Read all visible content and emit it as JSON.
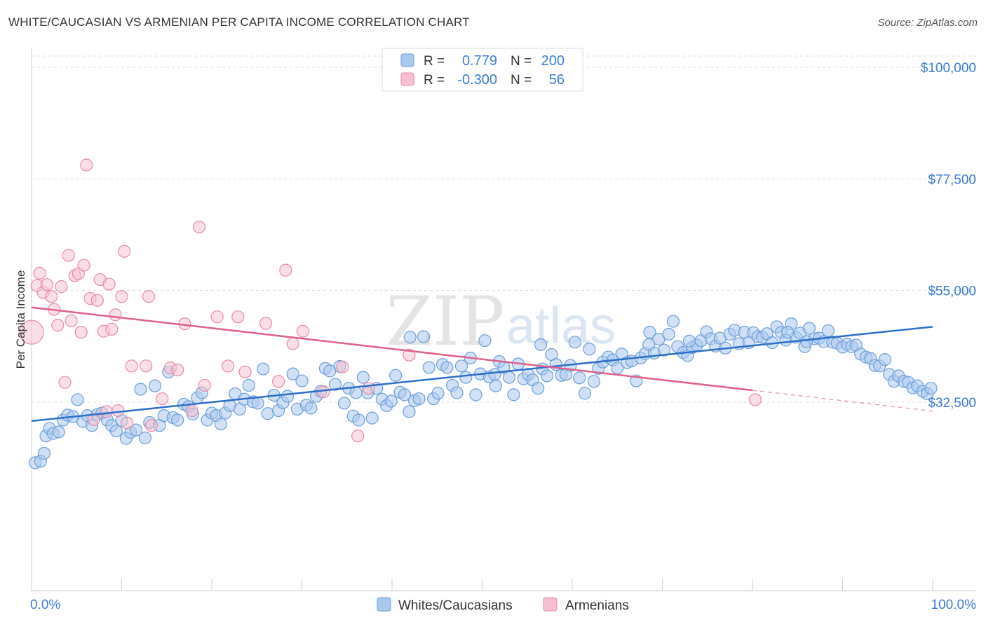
{
  "header": {
    "title": "WHITE/CAUCASIAN VS ARMENIAN PER CAPITA INCOME CORRELATION CHART",
    "source": "Source: ZipAtlas.com"
  },
  "watermark": {
    "zip": "ZIP",
    "atlas": "atlas"
  },
  "chart_data": {
    "type": "scatter",
    "title": "WHITE/CAUCASIAN VS ARMENIAN PER CAPITA INCOME CORRELATION CHART",
    "ylabel": "Per Capita Income",
    "xlabel": "",
    "xlim": [
      0,
      100
    ],
    "ylim": [
      14000,
      102000
    ],
    "x_tick_labels": [
      "0.0%",
      "100.0%"
    ],
    "y_ticks": [
      {
        "value": 100000,
        "label": "$100,000"
      },
      {
        "value": 77500,
        "label": "$77,500"
      },
      {
        "value": 55000,
        "label": "$55,000"
      },
      {
        "value": 32500,
        "label": "$32,500"
      }
    ],
    "grid": "horizontal dashed",
    "legend_top": [
      {
        "r_label": "R = ",
        "r_value": "0.779",
        "n_label": "N = ",
        "n_value": "200"
      },
      {
        "r_label": "R = ",
        "r_value": "-0.300",
        "n_label": "N = ",
        "n_value": "56"
      }
    ],
    "legend_bottom": [
      "Whites/Caucasians",
      "Armenians"
    ],
    "colors": {
      "blue_fill": "#a9c8f0",
      "blue_stroke": "#6a9fd8",
      "blue_line": "#2a6fc9",
      "pink_fill": "#f7bfd0",
      "pink_stroke": "#e88aa8",
      "pink_line": "#e0608a",
      "tick_label": "#3b7dd8",
      "grid": "#dddddd"
    },
    "series": [
      {
        "name": "Whites/Caucasians",
        "trend": {
          "x0": 0,
          "y0": 28700,
          "x1": 100,
          "y1": 47700
        },
        "points": [
          [
            0.4,
            20300
          ],
          [
            1.0,
            20600
          ],
          [
            1.4,
            22200
          ],
          [
            1.6,
            25700
          ],
          [
            2.0,
            27200
          ],
          [
            2.4,
            26200
          ],
          [
            3.0,
            26500
          ],
          [
            3.5,
            28900
          ],
          [
            4.0,
            29900
          ],
          [
            4.6,
            29600
          ],
          [
            5.1,
            33000
          ],
          [
            5.7,
            28600
          ],
          [
            6.2,
            29800
          ],
          [
            6.7,
            27800
          ],
          [
            7.3,
            30000
          ],
          [
            7.8,
            30300
          ],
          [
            8.4,
            28900
          ],
          [
            8.9,
            27800
          ],
          [
            9.4,
            26700
          ],
          [
            10.0,
            28800
          ],
          [
            10.5,
            25200
          ],
          [
            11.0,
            26400
          ],
          [
            11.6,
            26900
          ],
          [
            12.1,
            35100
          ],
          [
            12.6,
            25300
          ],
          [
            13.1,
            28400
          ],
          [
            13.7,
            35800
          ],
          [
            14.2,
            27800
          ],
          [
            14.7,
            29800
          ],
          [
            15.2,
            38600
          ],
          [
            15.7,
            29400
          ],
          [
            16.2,
            28900
          ],
          [
            16.9,
            32100
          ],
          [
            17.4,
            31600
          ],
          [
            17.9,
            30100
          ],
          [
            18.4,
            33400
          ],
          [
            18.9,
            34400
          ],
          [
            19.5,
            28900
          ],
          [
            20.0,
            30300
          ],
          [
            20.5,
            29800
          ],
          [
            21.0,
            28100
          ],
          [
            21.5,
            30300
          ],
          [
            22.0,
            31800
          ],
          [
            22.6,
            34200
          ],
          [
            23.1,
            31100
          ],
          [
            23.6,
            33100
          ],
          [
            24.1,
            35900
          ],
          [
            24.6,
            32600
          ],
          [
            25.1,
            32300
          ],
          [
            25.7,
            39200
          ],
          [
            26.2,
            30200
          ],
          [
            26.9,
            33900
          ],
          [
            27.4,
            30800
          ],
          [
            27.9,
            32400
          ],
          [
            28.4,
            33700
          ],
          [
            29.0,
            38200
          ],
          [
            29.5,
            31100
          ],
          [
            30.0,
            36800
          ],
          [
            30.5,
            31900
          ],
          [
            31.0,
            31300
          ],
          [
            31.6,
            33700
          ],
          [
            32.1,
            34700
          ],
          [
            32.6,
            39300
          ],
          [
            33.1,
            38800
          ],
          [
            33.7,
            36100
          ],
          [
            34.2,
            39700
          ],
          [
            34.7,
            32300
          ],
          [
            35.2,
            35300
          ],
          [
            35.7,
            29700
          ],
          [
            36.3,
            28900
          ],
          [
            36.8,
            37500
          ],
          [
            37.3,
            34400
          ],
          [
            37.8,
            29300
          ],
          [
            38.3,
            35300
          ],
          [
            38.9,
            33100
          ],
          [
            39.4,
            31800
          ],
          [
            39.9,
            32700
          ],
          [
            40.4,
            37900
          ],
          [
            40.9,
            34500
          ],
          [
            41.4,
            34000
          ],
          [
            41.9,
            30600
          ],
          [
            42.5,
            32800
          ],
          [
            43.0,
            33200
          ],
          [
            43.5,
            45700
          ],
          [
            44.1,
            39500
          ],
          [
            44.6,
            33200
          ],
          [
            45.1,
            34300
          ],
          [
            45.6,
            40100
          ],
          [
            46.1,
            39500
          ],
          [
            46.7,
            35900
          ],
          [
            47.2,
            34400
          ],
          [
            47.7,
            39800
          ],
          [
            48.2,
            37500
          ],
          [
            48.7,
            41400
          ],
          [
            49.3,
            34000
          ],
          [
            49.8,
            38200
          ],
          [
            50.3,
            44900
          ],
          [
            50.8,
            37600
          ],
          [
            51.4,
            38100
          ],
          [
            51.9,
            40700
          ],
          [
            52.4,
            39500
          ],
          [
            53.0,
            37500
          ],
          [
            53.5,
            34000
          ],
          [
            54.0,
            40200
          ],
          [
            54.6,
            37200
          ],
          [
            55.1,
            38100
          ],
          [
            55.6,
            37000
          ],
          [
            56.2,
            35300
          ],
          [
            56.7,
            39200
          ],
          [
            57.2,
            37800
          ],
          [
            57.7,
            42100
          ],
          [
            58.2,
            40100
          ],
          [
            58.8,
            37900
          ],
          [
            59.3,
            38100
          ],
          [
            59.8,
            39900
          ],
          [
            60.3,
            44600
          ],
          [
            60.8,
            37400
          ],
          [
            61.4,
            34300
          ],
          [
            61.9,
            43200
          ],
          [
            62.4,
            36700
          ],
          [
            62.9,
            39300
          ],
          [
            63.4,
            40600
          ],
          [
            64.0,
            41600
          ],
          [
            64.5,
            41000
          ],
          [
            65.0,
            39400
          ],
          [
            65.5,
            42200
          ],
          [
            66.1,
            40500
          ],
          [
            66.6,
            40800
          ],
          [
            67.1,
            36800
          ],
          [
            67.6,
            41400
          ],
          [
            68.1,
            42300
          ],
          [
            68.6,
            46600
          ],
          [
            69.1,
            42400
          ],
          [
            69.6,
            45200
          ],
          [
            70.2,
            43000
          ],
          [
            70.7,
            46200
          ],
          [
            71.2,
            48800
          ],
          [
            71.7,
            43700
          ],
          [
            72.3,
            42500
          ],
          [
            72.8,
            41900
          ],
          [
            73.3,
            43500
          ],
          [
            73.8,
            44000
          ],
          [
            74.3,
            44900
          ],
          [
            74.9,
            46700
          ],
          [
            75.4,
            45300
          ],
          [
            75.9,
            43800
          ],
          [
            76.4,
            45400
          ],
          [
            77.0,
            43400
          ],
          [
            77.5,
            46200
          ],
          [
            78.0,
            47000
          ],
          [
            78.5,
            44300
          ],
          [
            79.1,
            46600
          ],
          [
            79.6,
            44500
          ],
          [
            80.1,
            46500
          ],
          [
            80.6,
            45700
          ],
          [
            81.1,
            45600
          ],
          [
            81.6,
            46300
          ],
          [
            82.2,
            44500
          ],
          [
            82.7,
            47700
          ],
          [
            83.2,
            46600
          ],
          [
            83.7,
            45000
          ],
          [
            84.3,
            48300
          ],
          [
            84.8,
            45600
          ],
          [
            85.3,
            46400
          ],
          [
            85.8,
            43700
          ],
          [
            86.3,
            47400
          ],
          [
            86.9,
            45300
          ],
          [
            87.4,
            45400
          ],
          [
            87.9,
            44700
          ],
          [
            88.4,
            46900
          ],
          [
            88.9,
            44600
          ],
          [
            89.4,
            44400
          ],
          [
            90.0,
            43600
          ],
          [
            90.5,
            44200
          ],
          [
            91.0,
            43700
          ],
          [
            91.5,
            44000
          ],
          [
            92.0,
            42200
          ],
          [
            92.6,
            41600
          ],
          [
            93.1,
            41300
          ],
          [
            93.6,
            39900
          ],
          [
            94.1,
            39800
          ],
          [
            94.7,
            41100
          ],
          [
            95.2,
            38100
          ],
          [
            95.7,
            36700
          ],
          [
            96.2,
            37800
          ],
          [
            96.8,
            36700
          ],
          [
            97.3,
            36500
          ],
          [
            97.8,
            35400
          ],
          [
            98.3,
            35800
          ],
          [
            98.9,
            34700
          ],
          [
            99.4,
            34200
          ],
          [
            99.8,
            35300
          ],
          [
            36.0,
            34400
          ],
          [
            42.0,
            45600
          ],
          [
            51.5,
            35800
          ],
          [
            56.5,
            44100
          ],
          [
            68.5,
            44100
          ],
          [
            73.0,
            44800
          ],
          [
            83.9,
            46600
          ],
          [
            86.0,
            44700
          ]
        ]
      },
      {
        "name": "Armenians",
        "trend": {
          "x0": 0,
          "y0": 51600,
          "x1": 80,
          "y1": 34900
        },
        "trend_dashed": {
          "x0": 80,
          "y0": 34900,
          "x1": 100,
          "y1": 30700
        },
        "points": [
          [
            0.0,
            46600
          ],
          [
            0.6,
            56000
          ],
          [
            0.9,
            58500
          ],
          [
            1.3,
            54600
          ],
          [
            1.7,
            56200
          ],
          [
            2.2,
            53800
          ],
          [
            2.5,
            51200
          ],
          [
            2.9,
            48000
          ],
          [
            3.3,
            55800
          ],
          [
            3.7,
            36500
          ],
          [
            4.1,
            62100
          ],
          [
            4.4,
            48900
          ],
          [
            4.8,
            58000
          ],
          [
            5.2,
            58400
          ],
          [
            5.5,
            46600
          ],
          [
            5.8,
            60100
          ],
          [
            6.1,
            80300
          ],
          [
            6.5,
            53400
          ],
          [
            6.9,
            29000
          ],
          [
            7.3,
            53000
          ],
          [
            7.6,
            57200
          ],
          [
            8.0,
            46800
          ],
          [
            8.3,
            30600
          ],
          [
            8.6,
            56300
          ],
          [
            8.9,
            47200
          ],
          [
            9.3,
            50100
          ],
          [
            9.6,
            30800
          ],
          [
            10.0,
            53800
          ],
          [
            10.3,
            62900
          ],
          [
            10.6,
            28300
          ],
          [
            11.1,
            39800
          ],
          [
            12.7,
            39800
          ],
          [
            13.0,
            53800
          ],
          [
            13.3,
            27800
          ],
          [
            14.5,
            33200
          ],
          [
            15.4,
            39400
          ],
          [
            16.2,
            39000
          ],
          [
            17.0,
            48300
          ],
          [
            17.8,
            30800
          ],
          [
            18.6,
            67800
          ],
          [
            19.2,
            35900
          ],
          [
            20.6,
            49700
          ],
          [
            21.8,
            39800
          ],
          [
            22.9,
            49700
          ],
          [
            23.7,
            38600
          ],
          [
            26.0,
            48400
          ],
          [
            27.4,
            36700
          ],
          [
            28.2,
            59100
          ],
          [
            29.0,
            44300
          ],
          [
            30.1,
            46800
          ],
          [
            32.4,
            34600
          ],
          [
            34.5,
            39600
          ],
          [
            36.2,
            25700
          ],
          [
            37.4,
            35300
          ],
          [
            41.9,
            42000
          ],
          [
            80.3,
            33000
          ]
        ]
      }
    ]
  }
}
